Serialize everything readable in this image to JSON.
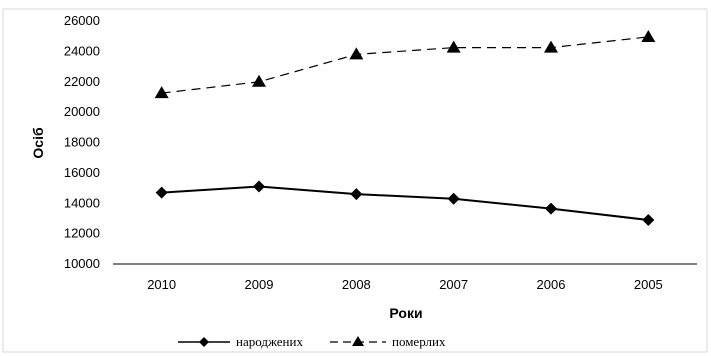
{
  "chart_data": {
    "type": "line",
    "title": "",
    "xlabel": "Роки",
    "ylabel": "Осіб",
    "categories": [
      "2010",
      "2009",
      "2008",
      "2007",
      "2006",
      "2005"
    ],
    "ylim": [
      10000,
      26000
    ],
    "yticks": [
      10000,
      12000,
      14000,
      16000,
      18000,
      20000,
      22000,
      24000,
      26000
    ],
    "grid": false,
    "legend_position": "bottom",
    "series": [
      {
        "name": "народжених",
        "values": [
          14700,
          15100,
          14600,
          14300,
          13650,
          12900
        ],
        "color": "#000000",
        "marker": "diamond",
        "line_style": "solid"
      },
      {
        "name": "померлих",
        "values": [
          21250,
          22000,
          23800,
          24250,
          24250,
          24950
        ],
        "color": "#000000",
        "marker": "triangle",
        "line_style": "dashed"
      }
    ]
  }
}
